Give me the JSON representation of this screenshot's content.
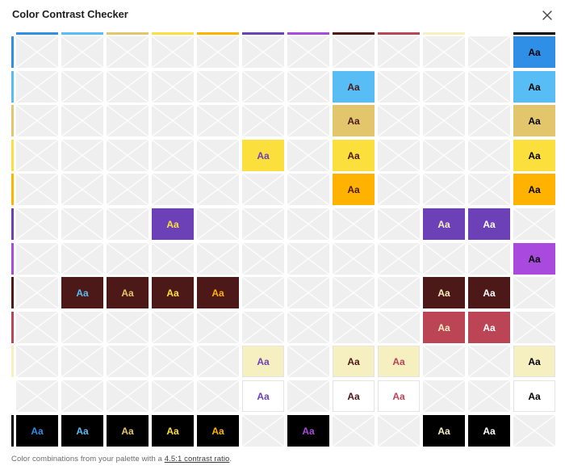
{
  "dialog": {
    "title": "Color Contrast Checker",
    "close_label": "close"
  },
  "footer": {
    "text_before": "Color combinations from your palette with a ",
    "link": "4.5:1 contrast ratio",
    "text_after": "."
  },
  "sample_text": "Aa",
  "palette": [
    {
      "name": "blue",
      "hex": "#2f8ee6"
    },
    {
      "name": "sky",
      "hex": "#58bdf4"
    },
    {
      "name": "tan",
      "hex": "#e3c56c"
    },
    {
      "name": "yellow",
      "hex": "#fbe03d"
    },
    {
      "name": "amber",
      "hex": "#ffb300"
    },
    {
      "name": "purple",
      "hex": "#6c41b8"
    },
    {
      "name": "violet",
      "hex": "#aa49de"
    },
    {
      "name": "maroon",
      "hex": "#4c1818"
    },
    {
      "name": "rose",
      "hex": "#bb4455"
    },
    {
      "name": "cream",
      "hex": "#f6efc0"
    },
    {
      "name": "white",
      "hex": "#ffffff"
    },
    {
      "name": "black",
      "hex": "#000000"
    }
  ],
  "matrix": [
    [
      null,
      null,
      null,
      null,
      null,
      null,
      null,
      null,
      null,
      null,
      null,
      11
    ],
    [
      null,
      null,
      null,
      null,
      null,
      null,
      null,
      7,
      null,
      null,
      null,
      11
    ],
    [
      null,
      null,
      null,
      null,
      null,
      null,
      null,
      7,
      null,
      null,
      null,
      11
    ],
    [
      null,
      null,
      null,
      null,
      null,
      5,
      null,
      7,
      null,
      null,
      null,
      11
    ],
    [
      null,
      null,
      null,
      null,
      null,
      null,
      null,
      7,
      null,
      null,
      null,
      11
    ],
    [
      null,
      null,
      null,
      3,
      null,
      null,
      null,
      null,
      null,
      9,
      10,
      null
    ],
    [
      null,
      null,
      null,
      null,
      null,
      null,
      null,
      null,
      null,
      null,
      null,
      11
    ],
    [
      null,
      1,
      2,
      3,
      4,
      null,
      null,
      null,
      null,
      9,
      10,
      null
    ],
    [
      null,
      null,
      null,
      null,
      null,
      null,
      null,
      null,
      null,
      9,
      10,
      null
    ],
    [
      null,
      null,
      null,
      null,
      null,
      5,
      null,
      7,
      8,
      null,
      null,
      11
    ],
    [
      null,
      null,
      null,
      null,
      null,
      5,
      null,
      7,
      8,
      null,
      null,
      11
    ],
    [
      0,
      1,
      2,
      3,
      4,
      null,
      6,
      null,
      null,
      9,
      10,
      null
    ]
  ]
}
